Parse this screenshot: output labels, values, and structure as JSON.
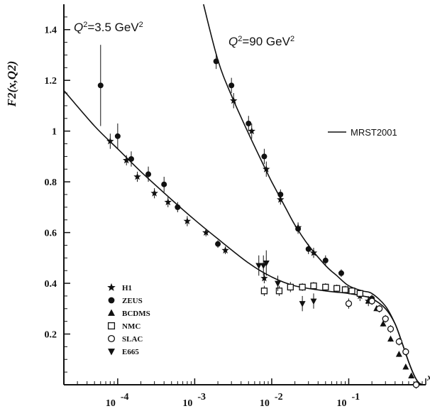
{
  "chart_data": {
    "type": "scatter",
    "xscale": "log",
    "xlim": [
      2e-05,
      1
    ],
    "ylim": [
      0,
      1.5
    ],
    "ylabel": "F2(x,Q2)",
    "xlabel": "x",
    "yticks": [
      0.2,
      0.4,
      0.6,
      0.8,
      1.0,
      1.2,
      1.4
    ],
    "ytick_labels": [
      "0.2",
      "0.4",
      "0.6",
      "0.8",
      "1",
      "1.2",
      "1.4"
    ],
    "xticks": [
      0.0001,
      0.001,
      0.01,
      0.1
    ],
    "xtick_labels": [
      "10-4",
      "10-3",
      "10-2",
      "10-1"
    ],
    "annotations": [
      {
        "text_main": "Q",
        "sup1": "2",
        "text_rest": "=3.5 GeV",
        "sup2": "2",
        "x": 3.3e-05,
        "y": 1.4
      },
      {
        "text_main": "Q",
        "sup1": "2",
        "text_rest": "=90 GeV",
        "sup2": "2",
        "x": 0.0026,
        "y": 1.34
      }
    ],
    "legend_line": {
      "label": "MRST2001"
    },
    "legend_markers": [
      {
        "label": "H1",
        "marker": "star"
      },
      {
        "label": "ZEUS",
        "marker": "circle"
      },
      {
        "label": "BCDMS",
        "marker": "triangle-up"
      },
      {
        "label": "NMC",
        "marker": "square-open"
      },
      {
        "label": "SLAC",
        "marker": "circle-open"
      },
      {
        "label": "E665",
        "marker": "triangle-down"
      }
    ],
    "curves": [
      {
        "name": "MRST2001 Q2=3.5 GeV2",
        "x": [
          2e-05,
          5e-05,
          0.0001,
          0.0002,
          0.0005,
          0.001,
          0.002,
          0.005,
          0.01,
          0.02,
          0.05,
          0.1,
          0.15,
          0.2,
          0.3,
          0.4,
          0.5,
          0.6,
          0.7,
          0.8,
          0.9
        ],
        "y": [
          1.16,
          1.02,
          0.93,
          0.84,
          0.73,
          0.65,
          0.575,
          0.48,
          0.425,
          0.39,
          0.37,
          0.36,
          0.35,
          0.34,
          0.3,
          0.24,
          0.16,
          0.09,
          0.04,
          0.01,
          0.0
        ]
      },
      {
        "name": "MRST2001 Q2=90 GeV2",
        "x": [
          0.0013,
          0.002,
          0.003,
          0.005,
          0.008,
          0.01,
          0.015,
          0.02,
          0.03,
          0.05,
          0.07,
          0.1,
          0.15,
          0.2,
          0.3,
          0.4,
          0.5,
          0.6,
          0.7,
          0.8,
          0.9
        ],
        "y": [
          1.5,
          1.28,
          1.14,
          0.99,
          0.86,
          0.8,
          0.7,
          0.63,
          0.55,
          0.47,
          0.43,
          0.39,
          0.37,
          0.36,
          0.31,
          0.24,
          0.16,
          0.09,
          0.04,
          0.01,
          0.0
        ]
      }
    ],
    "series": [
      {
        "name": "H1",
        "marker": "star",
        "points": [
          {
            "x": 8e-05,
            "y": 0.96,
            "err": 0.03
          },
          {
            "x": 0.00013,
            "y": 0.885,
            "err": 0.02
          },
          {
            "x": 0.00018,
            "y": 0.82,
            "err": 0.02
          },
          {
            "x": 0.0003,
            "y": 0.755,
            "err": 0.02
          },
          {
            "x": 0.00045,
            "y": 0.72,
            "err": 0.02
          },
          {
            "x": 0.0008,
            "y": 0.645,
            "err": 0.02
          },
          {
            "x": 0.0014,
            "y": 0.6,
            "err": 0.015
          },
          {
            "x": 0.0025,
            "y": 0.53,
            "err": 0.015
          },
          {
            "x": 0.008,
            "y": 0.42,
            "err": 0.02
          },
          {
            "x": 0.0032,
            "y": 1.12,
            "err": 0.03
          },
          {
            "x": 0.0055,
            "y": 1.0,
            "err": 0.03
          },
          {
            "x": 0.0085,
            "y": 0.85,
            "err": 0.03
          },
          {
            "x": 0.013,
            "y": 0.73,
            "err": 0.02
          },
          {
            "x": 0.022,
            "y": 0.62,
            "err": 0.02
          },
          {
            "x": 0.035,
            "y": 0.52,
            "err": 0.02
          },
          {
            "x": 0.14,
            "y": 0.35,
            "err": 0.02
          },
          {
            "x": 0.18,
            "y": 0.33,
            "err": 0.02
          }
        ]
      },
      {
        "name": "ZEUS",
        "marker": "circle",
        "points": [
          {
            "x": 6e-05,
            "y": 1.18,
            "err": 0.16
          },
          {
            "x": 0.0001,
            "y": 0.98,
            "err": 0.05
          },
          {
            "x": 0.00015,
            "y": 0.89,
            "err": 0.03
          },
          {
            "x": 0.00025,
            "y": 0.83,
            "err": 0.03
          },
          {
            "x": 0.0004,
            "y": 0.79,
            "err": 0.03
          },
          {
            "x": 0.0006,
            "y": 0.7,
            "err": 0.02
          },
          {
            "x": 0.002,
            "y": 0.555,
            "err": 0.015
          },
          {
            "x": 0.0019,
            "y": 1.275,
            "err": 0.03
          },
          {
            "x": 0.003,
            "y": 1.18,
            "err": 0.03
          },
          {
            "x": 0.005,
            "y": 1.03,
            "err": 0.03
          },
          {
            "x": 0.008,
            "y": 0.9,
            "err": 0.03
          },
          {
            "x": 0.013,
            "y": 0.75,
            "err": 0.02
          },
          {
            "x": 0.022,
            "y": 0.615,
            "err": 0.02
          },
          {
            "x": 0.03,
            "y": 0.535,
            "err": 0.02
          },
          {
            "x": 0.05,
            "y": 0.49,
            "err": 0.02
          },
          {
            "x": 0.08,
            "y": 0.44,
            "err": 0.015
          },
          {
            "x": 0.2,
            "y": 0.34,
            "err": 0.015
          }
        ]
      },
      {
        "name": "BCDMS",
        "marker": "triangle-up",
        "points": [
          {
            "x": 0.18,
            "y": 0.33,
            "err": 0.01
          },
          {
            "x": 0.23,
            "y": 0.3,
            "err": 0.01
          },
          {
            "x": 0.28,
            "y": 0.24,
            "err": 0.01
          },
          {
            "x": 0.35,
            "y": 0.18,
            "err": 0.01
          },
          {
            "x": 0.45,
            "y": 0.12,
            "err": 0.01
          },
          {
            "x": 0.55,
            "y": 0.07,
            "err": 0.01
          },
          {
            "x": 0.65,
            "y": 0.035,
            "err": 0.01
          }
        ]
      },
      {
        "name": "NMC",
        "marker": "square-open",
        "points": [
          {
            "x": 0.008,
            "y": 0.37,
            "err": 0.02
          },
          {
            "x": 0.0125,
            "y": 0.37,
            "err": 0.02
          },
          {
            "x": 0.0175,
            "y": 0.385,
            "err": 0.02
          },
          {
            "x": 0.025,
            "y": 0.385,
            "err": 0.015
          },
          {
            "x": 0.035,
            "y": 0.39,
            "err": 0.015
          },
          {
            "x": 0.05,
            "y": 0.385,
            "err": 0.015
          },
          {
            "x": 0.07,
            "y": 0.38,
            "err": 0.015
          },
          {
            "x": 0.09,
            "y": 0.375,
            "err": 0.015
          },
          {
            "x": 0.11,
            "y": 0.37,
            "err": 0.015
          },
          {
            "x": 0.14,
            "y": 0.36,
            "err": 0.015
          }
        ]
      },
      {
        "name": "SLAC",
        "marker": "circle-open",
        "points": [
          {
            "x": 0.1,
            "y": 0.32,
            "err": 0.02
          },
          {
            "x": 0.2,
            "y": 0.33,
            "err": 0.015
          },
          {
            "x": 0.25,
            "y": 0.3,
            "err": 0.015
          },
          {
            "x": 0.3,
            "y": 0.26,
            "err": 0.015
          },
          {
            "x": 0.35,
            "y": 0.22,
            "err": 0.015
          },
          {
            "x": 0.45,
            "y": 0.17,
            "err": 0.015
          },
          {
            "x": 0.55,
            "y": 0.13,
            "err": 0.015
          },
          {
            "x": 0.75,
            "y": 0.0,
            "err": 0.015
          }
        ]
      },
      {
        "name": "E665",
        "marker": "triangle-down",
        "points": [
          {
            "x": 0.0068,
            "y": 0.47,
            "err": 0.04
          },
          {
            "x": 0.0078,
            "y": 0.47,
            "err": 0.04
          },
          {
            "x": 0.0085,
            "y": 0.48,
            "err": 0.05
          },
          {
            "x": 0.012,
            "y": 0.4,
            "err": 0.03
          },
          {
            "x": 0.025,
            "y": 0.32,
            "err": 0.03
          },
          {
            "x": 0.035,
            "y": 0.33,
            "err": 0.03
          }
        ]
      }
    ]
  }
}
